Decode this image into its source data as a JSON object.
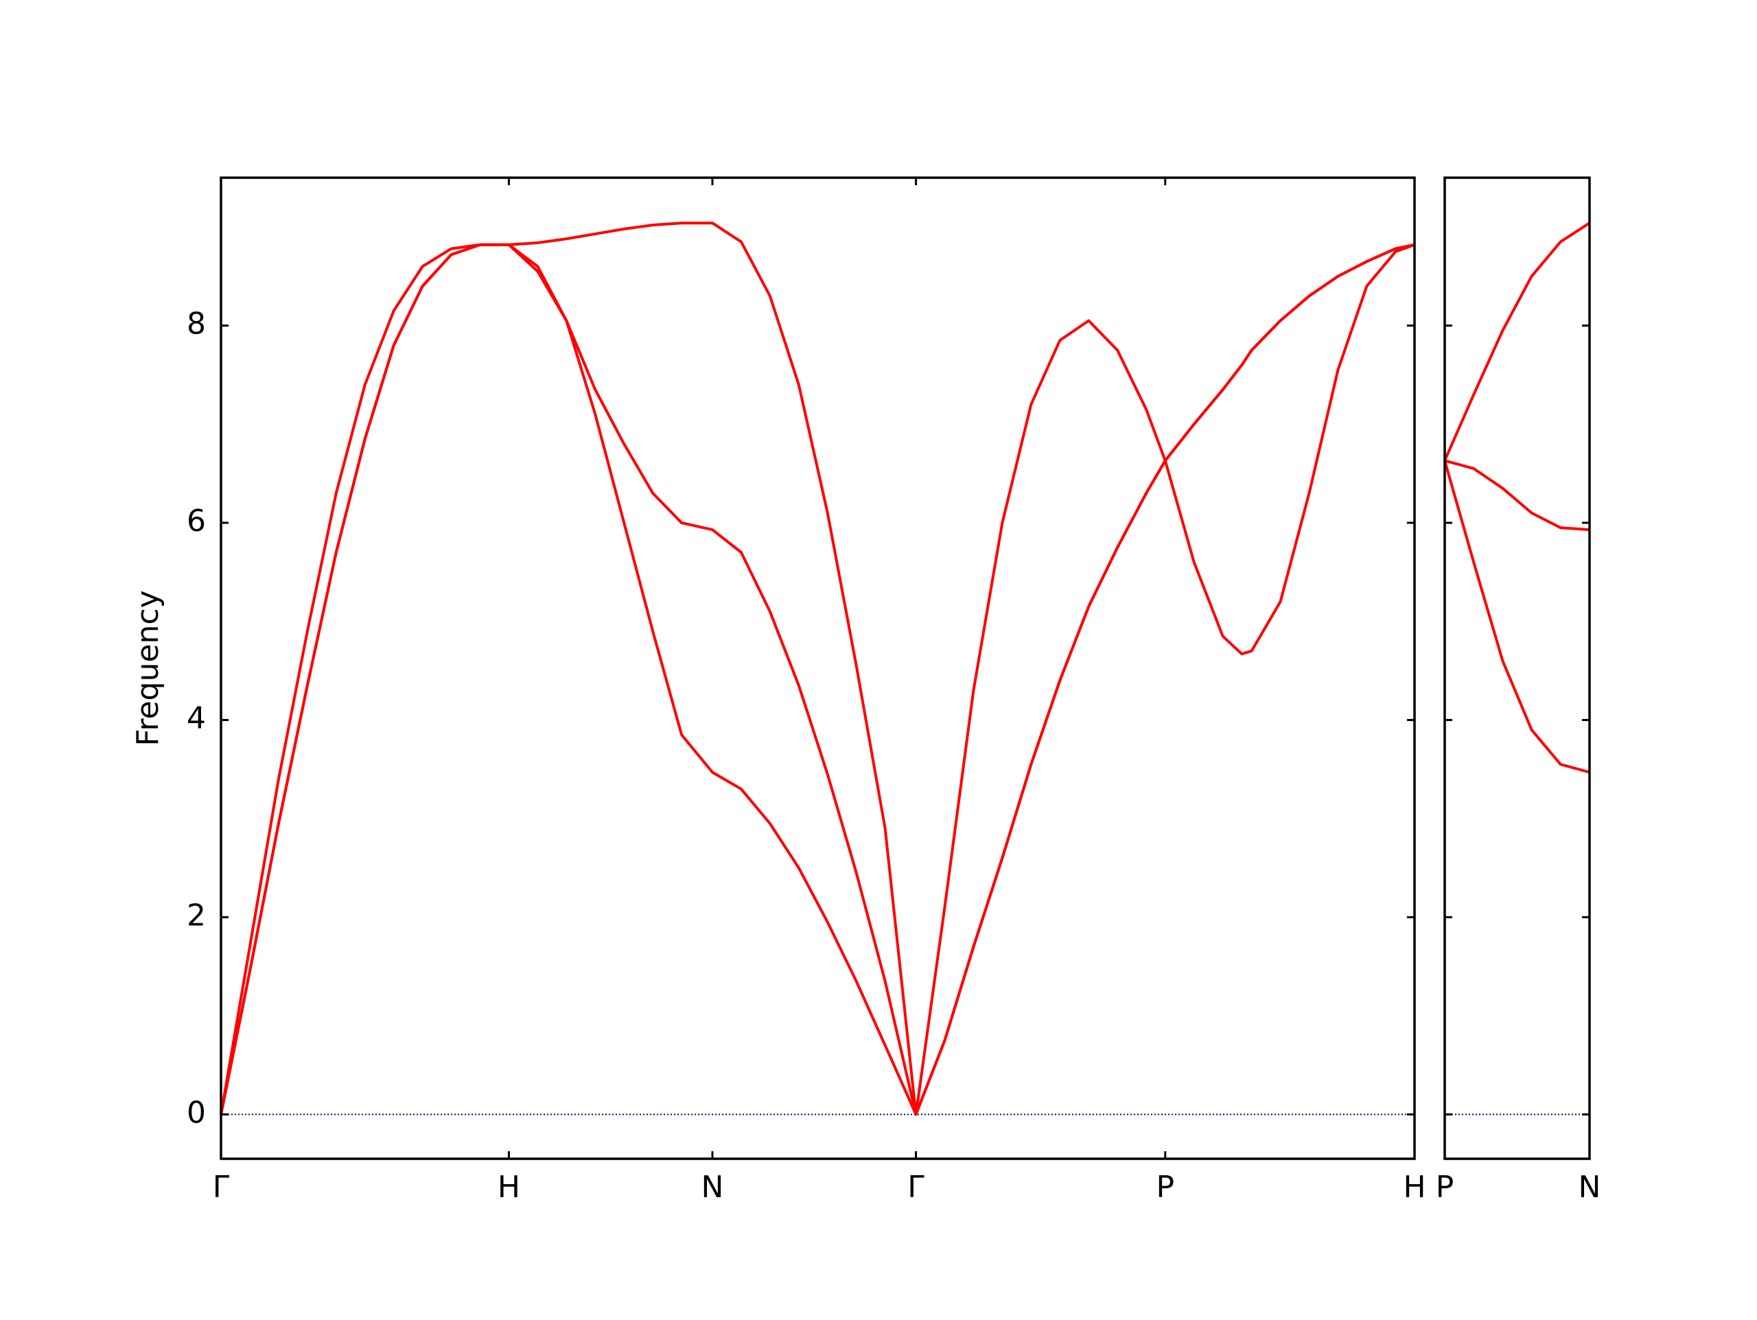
{
  "chart_data": [
    {
      "type": "line",
      "ylabel": "Frequency",
      "x": [
        0,
        0.1,
        0.2,
        0.3,
        0.4,
        0.5,
        0.6,
        0.7,
        0.8,
        0.9,
        1,
        1.1,
        1.2,
        1.3,
        1.4,
        1.5,
        1.6,
        1.707,
        1.807,
        1.907,
        2.007,
        2.107,
        2.207,
        2.307,
        2.414,
        2.514,
        2.614,
        2.714,
        2.814,
        2.914,
        3.014,
        3.114,
        3.214,
        3.28,
        3.38,
        3.48,
        3.546,
        3.58,
        3.68,
        3.78,
        3.88,
        3.98,
        4.08,
        4.146
      ],
      "series": [
        {
          "color": "#ff0000",
          "values": [
            0,
            1.45,
            2.95,
            4.35,
            5.7,
            6.85,
            7.8,
            8.4,
            8.72,
            8.82,
            8.82,
            8.55,
            8.05,
            7.1,
            6.0,
            4.9,
            3.85,
            3.47,
            3.3,
            2.95,
            2.5,
            1.95,
            1.35,
            0.7,
            0,
            0.75,
            1.7,
            2.6,
            3.55,
            4.4,
            5.15,
            5.75,
            6.3,
            6.63,
            5.6,
            4.85,
            4.67,
            4.7,
            5.2,
            6.3,
            7.55,
            8.4,
            8.75,
            8.82
          ]
        },
        {
          "color": "#ff0000",
          "values": [
            0,
            1.45,
            2.95,
            4.35,
            5.7,
            6.85,
            7.8,
            8.4,
            8.72,
            8.82,
            8.82,
            8.6,
            8.05,
            7.35,
            6.8,
            6.3,
            6.0,
            5.93,
            5.7,
            5.1,
            4.35,
            3.45,
            2.45,
            1.35,
            0,
            0.75,
            1.7,
            2.6,
            3.55,
            4.4,
            5.15,
            5.75,
            6.3,
            6.63,
            7.0,
            7.35,
            7.6,
            7.75,
            8.05,
            8.3,
            8.5,
            8.65,
            8.78,
            8.82
          ]
        },
        {
          "color": "#ff0000",
          "values": [
            0,
            1.7,
            3.4,
            4.9,
            6.3,
            7.4,
            8.15,
            8.6,
            8.78,
            8.82,
            8.82,
            8.84,
            8.88,
            8.93,
            8.98,
            9.02,
            9.04,
            9.04,
            8.85,
            8.3,
            7.4,
            6.1,
            4.55,
            2.9,
            0,
            2.1,
            4.3,
            6.0,
            7.2,
            7.85,
            8.05,
            7.75,
            7.15,
            6.63,
            7.0,
            7.35,
            7.6,
            7.75,
            8.05,
            8.3,
            8.5,
            8.65,
            8.78,
            8.82
          ]
        }
      ],
      "xlim": [
        0,
        4.146
      ],
      "xticks": [
        {
          "value": 0,
          "label": "Γ"
        },
        {
          "value": 1,
          "label": "H"
        },
        {
          "value": 1.707,
          "label": "N"
        },
        {
          "value": 2.414,
          "label": "Γ"
        },
        {
          "value": 3.28,
          "label": "P"
        },
        {
          "value": 4.146,
          "label": "H"
        }
      ],
      "ylim": [
        -0.45,
        9.5
      ],
      "yticks": [
        0,
        2,
        4,
        6,
        8
      ],
      "ytick_labels": true,
      "hline": 0,
      "hline_color": "#00008b"
    },
    {
      "type": "line",
      "x": [
        0,
        0.1,
        0.2,
        0.3,
        0.4,
        0.5
      ],
      "series": [
        {
          "color": "#ff0000",
          "values": [
            6.63,
            5.6,
            4.6,
            3.9,
            3.55,
            3.47
          ]
        },
        {
          "color": "#ff0000",
          "values": [
            6.63,
            6.55,
            6.35,
            6.1,
            5.95,
            5.93
          ]
        },
        {
          "color": "#ff0000",
          "values": [
            6.63,
            7.3,
            7.95,
            8.5,
            8.85,
            9.04
          ]
        }
      ],
      "xlim": [
        0,
        0.5
      ],
      "xticks": [
        {
          "value": 0,
          "label": "P"
        },
        {
          "value": 0.5,
          "label": "N"
        }
      ],
      "ylim": [
        -0.45,
        9.5
      ],
      "yticks": [
        0,
        2,
        4,
        6,
        8
      ],
      "ytick_labels": false,
      "hline": 0,
      "hline_color": "#00008b"
    }
  ]
}
